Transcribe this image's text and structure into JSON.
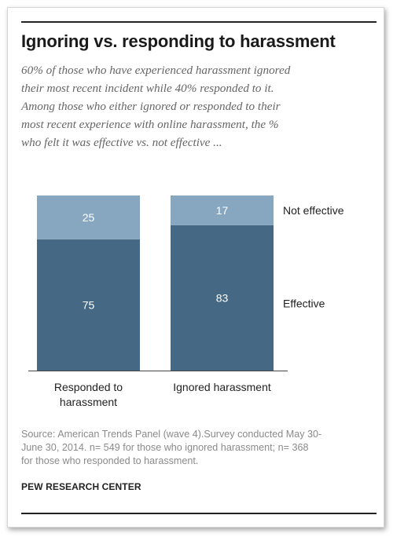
{
  "title": "Ignoring vs. responding to harassment",
  "subtitle_lines": [
    "60% of those who have experienced harassment ignored",
    "their most recent incident while 40% responded to it.",
    "Among those who either ignored or responded to their",
    "most recent experience with online harassment, the %",
    "who felt it was effective vs. not effective ..."
  ],
  "chart_data": {
    "type": "bar",
    "stacked": true,
    "categories": [
      [
        "Responded to",
        "harassment"
      ],
      [
        "Ignored harassment"
      ]
    ],
    "series": [
      {
        "name": "Effective",
        "values": [
          75,
          83
        ]
      },
      {
        "name": "Not effective",
        "values": [
          25,
          17
        ]
      }
    ],
    "ylim": [
      0,
      100
    ],
    "legend": "right",
    "grid": false
  },
  "colors": {
    "effective": "#456984",
    "not_effective": "#86a7bf",
    "value_label": "#ffffff",
    "axis": "#444444"
  },
  "source_lines": [
    "Source: American Trends Panel (wave 4).Survey conducted May 30-",
    "June 30, 2014. n= 549 for those who ignored harassment; n= 368",
    "for those who responded to harassment."
  ],
  "organization": "PEW RESEARCH CENTER"
}
